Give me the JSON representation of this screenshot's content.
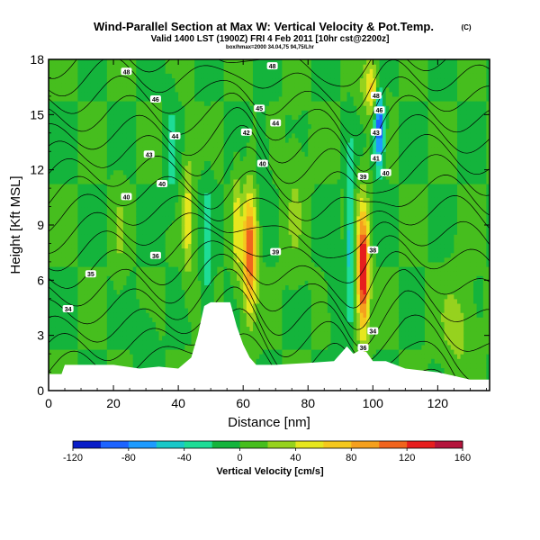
{
  "chart_data": {
    "type": "heatmap",
    "title": "Wind-Parallel Section at Max W: Vertical Velocity & Pot.Temp.",
    "title_mark": "(C)",
    "subtitle": "Valid 1400 LST (1900Z) FRI 4 Feb 2011 [10hr cst@2200z]",
    "subsubtitle": "box/hmax=2000 34.04,75 94,75/Lhr",
    "xlabel": "Distance [nm]",
    "ylabel": "Height [Kft MSL]",
    "xlim": [
      0,
      136
    ],
    "ylim": [
      0,
      18
    ],
    "xticks": [
      0,
      20,
      40,
      60,
      80,
      100,
      120
    ],
    "yticks": [
      0,
      3,
      6,
      9,
      12,
      15,
      18
    ],
    "colorbar": {
      "label": "Vertical Velocity [cm/s]",
      "ticks": [
        -120,
        -80,
        -40,
        0,
        40,
        80,
        120,
        160
      ],
      "levels": [
        -120,
        -100,
        -80,
        -60,
        -40,
        -20,
        0,
        20,
        40,
        60,
        80,
        100,
        120,
        140,
        160
      ],
      "colors": [
        "#0a1ec8",
        "#1e64ff",
        "#1e9bff",
        "#19c8c8",
        "#1edc96",
        "#14b43c",
        "#46be1e",
        "#96d21e",
        "#e6e61e",
        "#f5c81e",
        "#f5a01e",
        "#f0641e",
        "#e61e1e",
        "#b4143c"
      ]
    },
    "terrain": [
      [
        0,
        0.9
      ],
      [
        4,
        0.9
      ],
      [
        5,
        1.4
      ],
      [
        20,
        1.4
      ],
      [
        28,
        1.2
      ],
      [
        34,
        1.3
      ],
      [
        40,
        1.2
      ],
      [
        44,
        1.8
      ],
      [
        46,
        3.0
      ],
      [
        48,
        4.6
      ],
      [
        50,
        4.8
      ],
      [
        56,
        4.8
      ],
      [
        58,
        3.5
      ],
      [
        60,
        2.5
      ],
      [
        62,
        1.8
      ],
      [
        64,
        1.4
      ],
      [
        70,
        1.4
      ],
      [
        80,
        1.5
      ],
      [
        88,
        1.6
      ],
      [
        92,
        2.4
      ],
      [
        94,
        2.0
      ],
      [
        96,
        2.2
      ],
      [
        98,
        2.1
      ],
      [
        100,
        1.6
      ],
      [
        104,
        1.6
      ],
      [
        110,
        1.2
      ],
      [
        120,
        1.0
      ],
      [
        130,
        0.6
      ],
      [
        136,
        0.6
      ]
    ],
    "velocity_features": [
      {
        "x": 62,
        "z": 7.5,
        "wx": 2.2,
        "wz": 3.2,
        "value": 120
      },
      {
        "x": 97,
        "z": 6.5,
        "wx": 1.8,
        "wz": 3.4,
        "value": 150
      },
      {
        "x": 43,
        "z": 9.5,
        "wx": 1.5,
        "wz": 3.5,
        "value": 50
      },
      {
        "x": 100,
        "z": 16.5,
        "wx": 3.0,
        "wz": 1.5,
        "value": 70
      },
      {
        "x": 58,
        "z": 9.0,
        "wx": 1.2,
        "wz": 3.0,
        "value": 50
      },
      {
        "x": 22,
        "z": 8.5,
        "wx": 2.0,
        "wz": 3.0,
        "value": 20
      },
      {
        "x": 126,
        "z": 3.5,
        "wx": 5.0,
        "wz": 2.5,
        "value": 30
      },
      {
        "x": 76,
        "z": 10.0,
        "wx": 3.0,
        "wz": 4.0,
        "value": 20
      },
      {
        "x": 93,
        "z": 8.5,
        "wx": 1.0,
        "wz": 4.5,
        "value": -60
      },
      {
        "x": 102,
        "z": 14.5,
        "wx": 1.5,
        "wz": 2.5,
        "value": -110
      },
      {
        "x": 49,
        "z": 7.5,
        "wx": 1.5,
        "wz": 4.0,
        "value": -35
      },
      {
        "x": 38,
        "z": 13.0,
        "wx": 1.5,
        "wz": 3.0,
        "value": -30
      },
      {
        "x": 88,
        "z": 6.0,
        "wx": 2.0,
        "wz": 2.5,
        "value": -20
      },
      {
        "x": 30,
        "z": 3.0,
        "wx": 3.0,
        "wz": 1.5,
        "value": -15
      },
      {
        "x": 66,
        "z": 12.5,
        "wx": 2.0,
        "wz": 2.0,
        "value": -20
      }
    ],
    "contour_labels": [
      {
        "x": 24,
        "z": 10.5,
        "text": "40"
      },
      {
        "x": 33,
        "z": 15.8,
        "text": "46"
      },
      {
        "x": 31,
        "z": 12.8,
        "text": "43"
      },
      {
        "x": 35,
        "z": 11.2,
        "text": "40"
      },
      {
        "x": 39,
        "z": 13.8,
        "text": "44"
      },
      {
        "x": 24,
        "z": 17.3,
        "text": "48"
      },
      {
        "x": 6,
        "z": 4.4,
        "text": "34"
      },
      {
        "x": 13,
        "z": 6.3,
        "text": "35"
      },
      {
        "x": 33,
        "z": 7.3,
        "text": "36"
      },
      {
        "x": 61,
        "z": 14.0,
        "text": "42"
      },
      {
        "x": 65,
        "z": 15.3,
        "text": "45"
      },
      {
        "x": 66,
        "z": 12.3,
        "text": "40"
      },
      {
        "x": 69,
        "z": 17.6,
        "text": "48"
      },
      {
        "x": 70,
        "z": 14.5,
        "text": "44"
      },
      {
        "x": 70,
        "z": 7.5,
        "text": "39"
      },
      {
        "x": 97,
        "z": 11.6,
        "text": "39"
      },
      {
        "x": 100,
        "z": 7.6,
        "text": "38"
      },
      {
        "x": 101,
        "z": 14.0,
        "text": "43"
      },
      {
        "x": 101,
        "z": 12.6,
        "text": "41"
      },
      {
        "x": 102,
        "z": 15.2,
        "text": "46"
      },
      {
        "x": 101,
        "z": 16.0,
        "text": "48"
      },
      {
        "x": 104,
        "z": 11.8,
        "text": "40"
      },
      {
        "x": 100,
        "z": 3.2,
        "text": "34"
      },
      {
        "x": 97,
        "z": 2.3,
        "text": "36"
      }
    ]
  }
}
